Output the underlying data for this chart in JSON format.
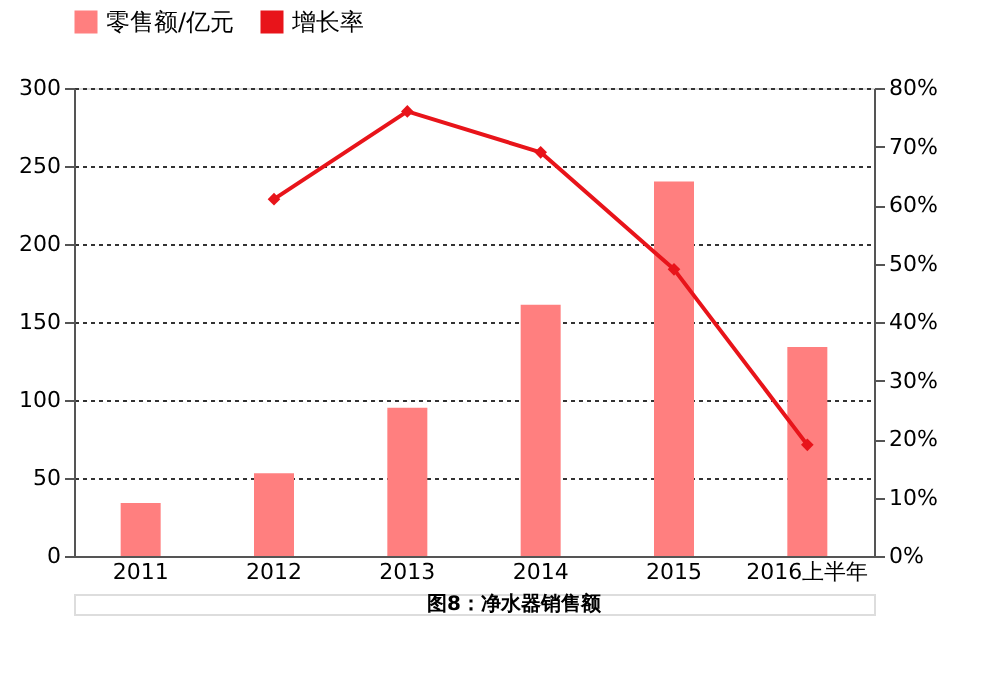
{
  "chart_data": {
    "type": "bar",
    "categories": [
      "2011",
      "2012",
      "2013",
      "2014",
      "2015",
      "2016上半年"
    ],
    "series": [
      {
        "name": "零售额/亿元",
        "color": "#ff7f7f",
        "values": [
          34,
          53,
          95,
          161,
          240,
          134
        ]
      },
      {
        "name": "增长率",
        "type": "line",
        "axis": "y2",
        "color": "#e8141a",
        "marker": "diamond",
        "values": [
          null,
          61,
          76,
          69,
          49,
          19
        ]
      }
    ],
    "ylim": [
      0,
      300
    ],
    "yticks": [
      0,
      50,
      100,
      150,
      200,
      250,
      300
    ],
    "y2lim": [
      0,
      80
    ],
    "y2ticks": [
      {
        "value": 0,
        "label": "0%"
      },
      {
        "value": 10,
        "label": "10%"
      },
      {
        "value": 20,
        "label": "20%"
      },
      {
        "value": 30,
        "label": "30%"
      },
      {
        "value": 40,
        "label": "40%"
      },
      {
        "value": 50,
        "label": "50%"
      },
      {
        "value": 60,
        "label": "60%"
      },
      {
        "value": 70,
        "label": "70%"
      },
      {
        "value": 80,
        "label": "80%"
      }
    ],
    "grid": "y",
    "legend": "top",
    "annotations": [
      "图8：净水器销售额"
    ]
  }
}
